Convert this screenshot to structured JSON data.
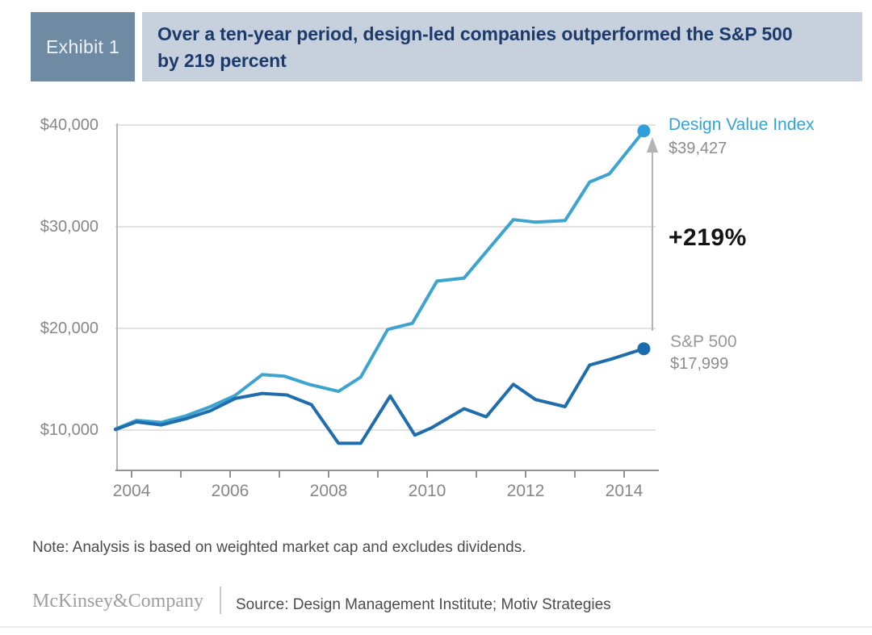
{
  "header": {
    "exhibit_label": "Exhibit 1",
    "title_lines": [
      "Over a ten-year period, design-led companies outperformed the S&P 500",
      "by 219 percent"
    ],
    "badge_bg": "#6e8ba3",
    "bar_bg": "#c6d1dd",
    "title_color": "#1c3a6b"
  },
  "chart_data": {
    "type": "line",
    "y_axis": {
      "tick_labels": [
        "$40,000",
        "$30,000",
        "$20,000",
        "$10,000"
      ],
      "tick_values": [
        40000,
        30000,
        20000,
        10000
      ],
      "range": [
        6000,
        42000
      ],
      "grid": true
    },
    "x_axis": {
      "labels": [
        "2004",
        "2006",
        "2008",
        "2010",
        "2012",
        "2014"
      ],
      "tick_years": [
        2004,
        2005,
        2006,
        2007,
        2008,
        2009,
        2010,
        2011,
        2012,
        2013,
        2014
      ],
      "range": [
        2003.67,
        2014.6
      ]
    },
    "series": [
      {
        "name": "Design Value Index",
        "id": "design-value-index",
        "color": "#3da3cf",
        "dot_color": "#2f9fd8",
        "end_label": "$39,427",
        "end_value": 39427,
        "points": [
          [
            2003.67,
            10100
          ],
          [
            2004.1,
            10950
          ],
          [
            2004.6,
            10750
          ],
          [
            2005.1,
            11400
          ],
          [
            2005.6,
            12300
          ],
          [
            2006.1,
            13400
          ],
          [
            2006.65,
            15450
          ],
          [
            2007.1,
            15300
          ],
          [
            2007.6,
            14500
          ],
          [
            2008.2,
            13800
          ],
          [
            2008.65,
            15200
          ],
          [
            2009.2,
            19900
          ],
          [
            2009.7,
            20500
          ],
          [
            2010.2,
            24650
          ],
          [
            2010.75,
            24950
          ],
          [
            2011.75,
            30700
          ],
          [
            2012.2,
            30450
          ],
          [
            2012.8,
            30600
          ],
          [
            2013.3,
            34400
          ],
          [
            2013.7,
            35200
          ],
          [
            2014.4,
            39427
          ]
        ]
      },
      {
        "name": "S&P 500",
        "id": "sp500",
        "color": "#1f6dad",
        "dot_color": "#1b6bb0",
        "end_label": "$17,999",
        "end_value": 17999,
        "points": [
          [
            2003.67,
            10050
          ],
          [
            2004.1,
            10800
          ],
          [
            2004.6,
            10500
          ],
          [
            2005.1,
            11100
          ],
          [
            2005.6,
            11900
          ],
          [
            2006.1,
            13100
          ],
          [
            2006.65,
            13600
          ],
          [
            2007.15,
            13450
          ],
          [
            2007.65,
            12500
          ],
          [
            2008.2,
            8700
          ],
          [
            2008.65,
            8700
          ],
          [
            2009.25,
            13350
          ],
          [
            2009.75,
            9500
          ],
          [
            2010.1,
            10250
          ],
          [
            2010.75,
            12100
          ],
          [
            2011.2,
            11300
          ],
          [
            2011.75,
            14500
          ],
          [
            2012.2,
            13000
          ],
          [
            2012.8,
            12300
          ],
          [
            2013.3,
            16400
          ],
          [
            2013.75,
            17000
          ],
          [
            2014.4,
            17999
          ]
        ]
      }
    ],
    "annotation": {
      "delta_label": "+219%",
      "arrow_color": "#b3b3b3"
    },
    "colors": {
      "grid": "#d9d9d9",
      "axis_y": "#b5b5b5",
      "axis_x": "#949494"
    },
    "legend_position": "right-of-line-endpoints"
  },
  "note": "Note: Analysis is based on weighted market cap and excludes dividends.",
  "footer": {
    "logo": "McKinsey&Company",
    "source": "Source: Design Management Institute; Motiv Strategies"
  }
}
